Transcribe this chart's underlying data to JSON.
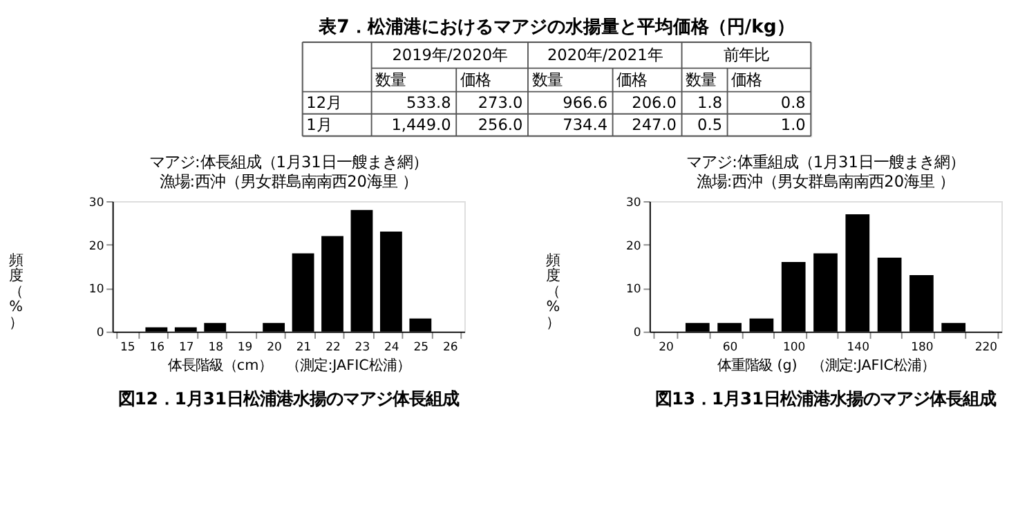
{
  "chart_data": [
    {
      "type": "other",
      "title": "表7．松浦港におけるマアジの水揚量と平均価格（円/kg）",
      "annotations": [
        "2019年/2020年",
        "2020年/2021年",
        "前年比",
        "数量",
        "価格",
        "数量",
        "価格",
        "数量",
        "価格",
        "12月",
        "533.8",
        "273.0",
        "966.6",
        "206.0",
        "1.8",
        "0.8",
        "1月",
        "1,449.0",
        "256.0",
        "734.4",
        "247.0",
        "0.5",
        "1.0"
      ]
    },
    {
      "type": "bar",
      "title": "マアジ:体長組成（1月31日一艘まき網）",
      "subtitle": "漁場:西沖（男女群島南南西20海里 ）",
      "xlabel": "体長階級（cm）　（測定:JAFIC松浦）",
      "ylabel": "頻度（%）",
      "categories": [
        "15",
        "16",
        "17",
        "18",
        "19",
        "20",
        "21",
        "22",
        "23",
        "24",
        "25",
        "26"
      ],
      "values": [
        0,
        1,
        1,
        2,
        0,
        2,
        18,
        22,
        28,
        23,
        3,
        0
      ],
      "color": "#000000",
      "ylim": [
        0,
        30
      ],
      "yticks": [
        0,
        10,
        20,
        30
      ],
      "grid": false,
      "annotations": [
        "図12．1月31日松浦港水揚のマアジ体長組成"
      ]
    },
    {
      "type": "bar",
      "title": "マアジ:体重組成（1月31日一艘まき網）",
      "subtitle": "漁場:西沖（男女群島南南西20海里 ）",
      "xlabel": "体重階級 (g)　（測定:JAFIC松浦）",
      "ylabel": "頻度（%）",
      "categories": [
        "20",
        null,
        "60",
        null,
        "100",
        null,
        "140",
        null,
        "180",
        null,
        "220"
      ],
      "values": [
        0,
        2,
        2,
        3,
        16,
        18,
        27,
        17,
        13,
        2,
        0
      ],
      "color": "#000000",
      "ylim": [
        0,
        30
      ],
      "yticks": [
        0,
        10,
        20,
        30
      ],
      "grid": false,
      "annotations": [
        "図13．1月31日松浦港水揚のマアジ体長組成"
      ]
    }
  ]
}
